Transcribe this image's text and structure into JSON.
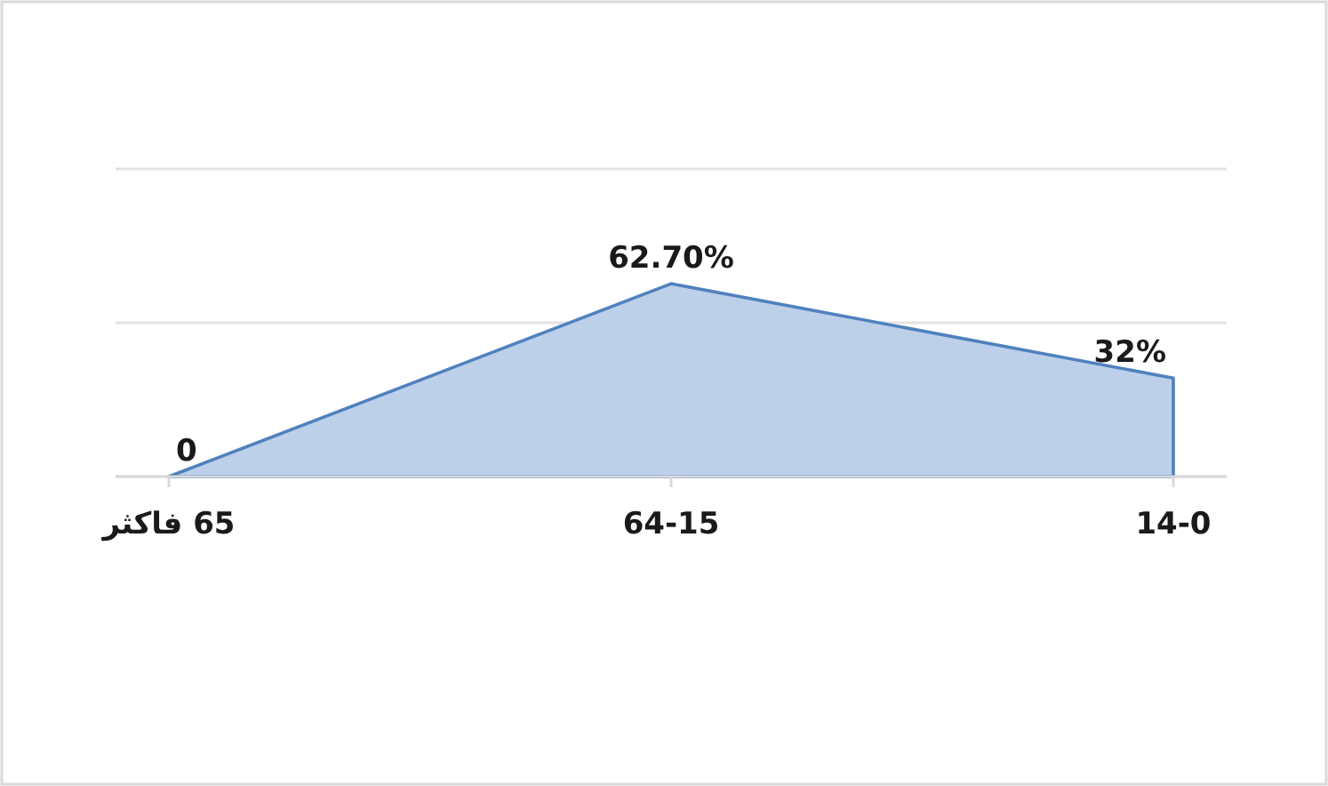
{
  "chart_data": {
    "type": "area",
    "categories": [
      "65 فاكثر",
      "64-15",
      "14-0"
    ],
    "values": [
      0,
      62.7,
      32
    ],
    "value_labels": [
      "0",
      "62.70%",
      "32%"
    ],
    "color": "#bdd0e9",
    "ylim": [
      0,
      100
    ],
    "yticks": [
      {
        "value": 0,
        "label": null
      },
      {
        "value": 50,
        "label": null
      },
      {
        "value": 100,
        "label": null
      }
    ],
    "grid": "y",
    "tick_labels": "x"
  }
}
